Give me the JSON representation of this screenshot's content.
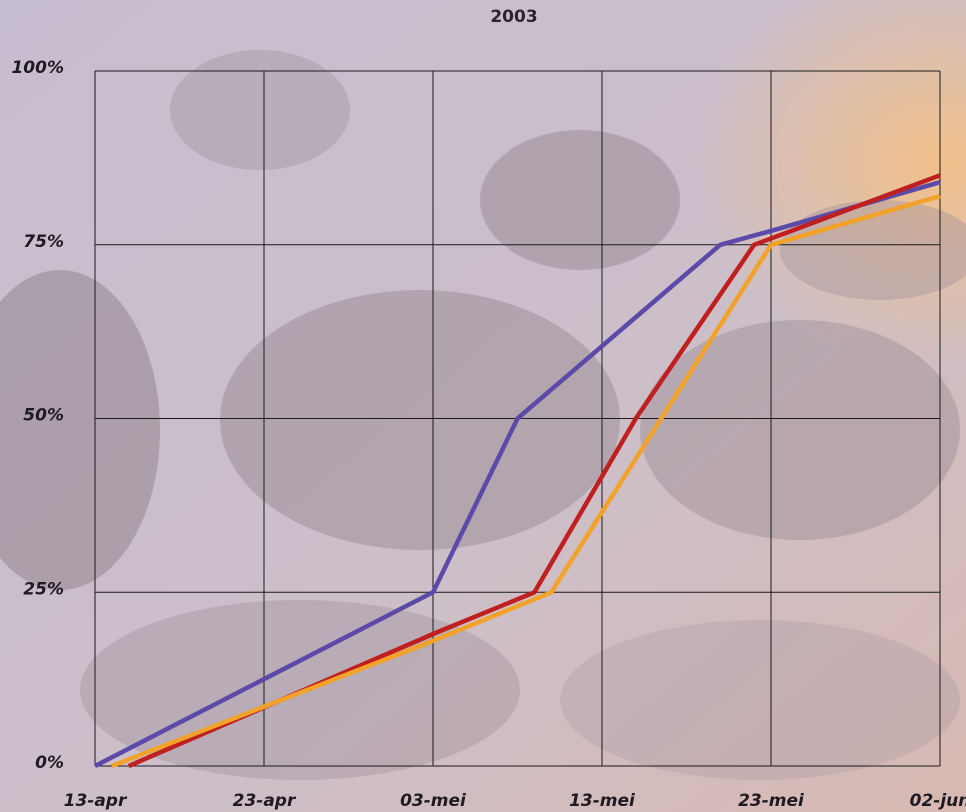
{
  "chart_data": {
    "type": "line",
    "title": "2003",
    "xlabel": "",
    "ylabel": "",
    "x_ticks": [
      "13-apr",
      "23-apr",
      "03-mei",
      "13-mei",
      "23-mei",
      "02-jun"
    ],
    "y_ticks": [
      "0%",
      "25%",
      "50%",
      "75%",
      "100%"
    ],
    "xlim": [
      "2003-04-13",
      "2003-06-02"
    ],
    "ylim": [
      0,
      100
    ],
    "grid": true,
    "series": [
      {
        "color": "#5b4aa8",
        "x": [
          "2003-04-13",
          "2003-05-03",
          "2003-05-08",
          "2003-05-20",
          "2003-05-23",
          "2003-06-02"
        ],
        "y": [
          0,
          25,
          50,
          75,
          77,
          84
        ]
      },
      {
        "color": "#c01f1f",
        "x": [
          "2003-04-15",
          "2003-05-03",
          "2003-05-09",
          "2003-05-15",
          "2003-05-22",
          "2003-06-02"
        ],
        "y": [
          0,
          19,
          25,
          50,
          75,
          85
        ]
      },
      {
        "color": "#f2a228",
        "x": [
          "2003-04-14",
          "2003-05-03",
          "2003-05-10",
          "2003-05-23",
          "2003-06-02"
        ],
        "y": [
          0,
          18,
          25,
          75,
          82
        ]
      }
    ]
  }
}
